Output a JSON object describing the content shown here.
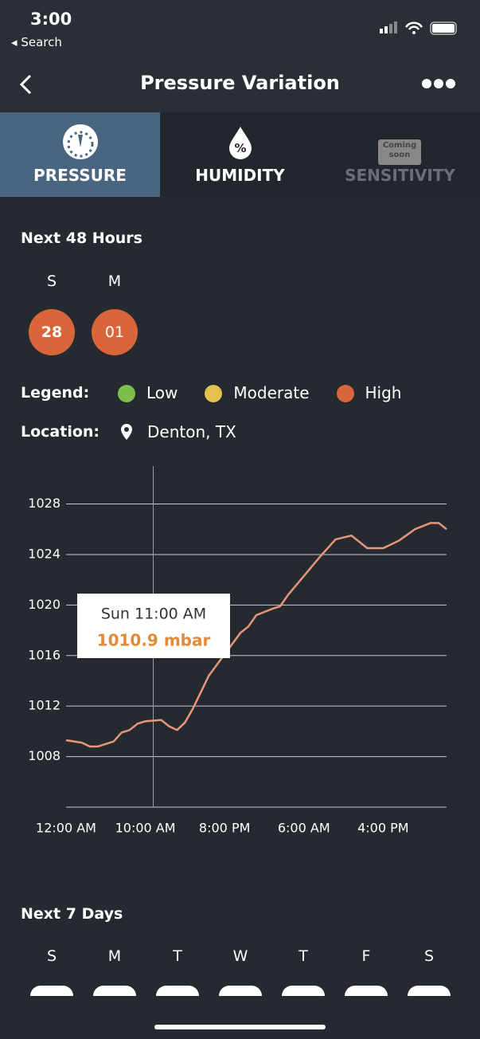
{
  "status_bar": {
    "time": "3:00",
    "back": "Search"
  },
  "nav": {
    "title": "Pressure Variation"
  },
  "tabs": [
    {
      "label": "PRESSURE"
    },
    {
      "label": "HUMIDITY"
    },
    {
      "label": "SENSITIVITY",
      "badge": "Coming soon"
    }
  ],
  "next48": {
    "title": "Next 48 Hours",
    "days": [
      {
        "day": "S",
        "date": "28"
      },
      {
        "day": "M",
        "date": "01"
      }
    ]
  },
  "legend": {
    "label": "Legend:",
    "items": [
      {
        "name": "Low",
        "color": "#7cc04b"
      },
      {
        "name": "Moderate",
        "color": "#e6c04f"
      },
      {
        "name": "High",
        "color": "#d9653b"
      }
    ]
  },
  "location": {
    "label": "Location:",
    "value": "Denton, TX"
  },
  "chart_data": {
    "type": "line",
    "x": [
      0,
      2,
      3,
      4,
      6,
      7,
      8,
      9,
      10,
      12,
      13,
      14,
      15,
      16,
      18,
      20,
      22,
      23,
      24,
      26,
      27,
      28,
      30,
      32,
      34,
      36,
      38,
      40,
      42,
      44,
      46,
      47,
      48
    ],
    "series": [
      {
        "name": "Pressure",
        "color": "#e8967a",
        "values": [
          1009.3,
          1009.1,
          1008.8,
          1008.8,
          1009.2,
          1009.9,
          1010.1,
          1010.6,
          1010.8,
          1010.9,
          1010.4,
          1010.1,
          1010.7,
          1011.8,
          1014.4,
          1016.1,
          1017.8,
          1018.3,
          1019.2,
          1019.7,
          1019.9,
          1020.8,
          1022.3,
          1023.8,
          1025.2,
          1025.5,
          1024.5,
          1024.5,
          1025.1,
          1026.0,
          1026.5,
          1026.5,
          1026.0
        ]
      }
    ],
    "xlim": [
      0,
      48
    ],
    "xticks": [
      {
        "value": 0,
        "label": "12:00 AM"
      },
      {
        "value": 10,
        "label": "10:00 AM"
      },
      {
        "value": 20,
        "label": "8:00 PM"
      },
      {
        "value": 30,
        "label": "6:00 AM"
      },
      {
        "value": 40,
        "label": "4:00 PM"
      }
    ],
    "ylim": [
      1004,
      1031
    ],
    "yticks": [
      1008,
      1012,
      1016,
      1020,
      1024,
      1028
    ],
    "grid": true,
    "cursor_x": 11,
    "tooltip": {
      "time": "Sun 11:00 AM",
      "value": "1010.9 mbar"
    }
  },
  "next7": {
    "title": "Next 7 Days",
    "days": [
      "S",
      "M",
      "T",
      "W",
      "T",
      "F",
      "S"
    ]
  }
}
